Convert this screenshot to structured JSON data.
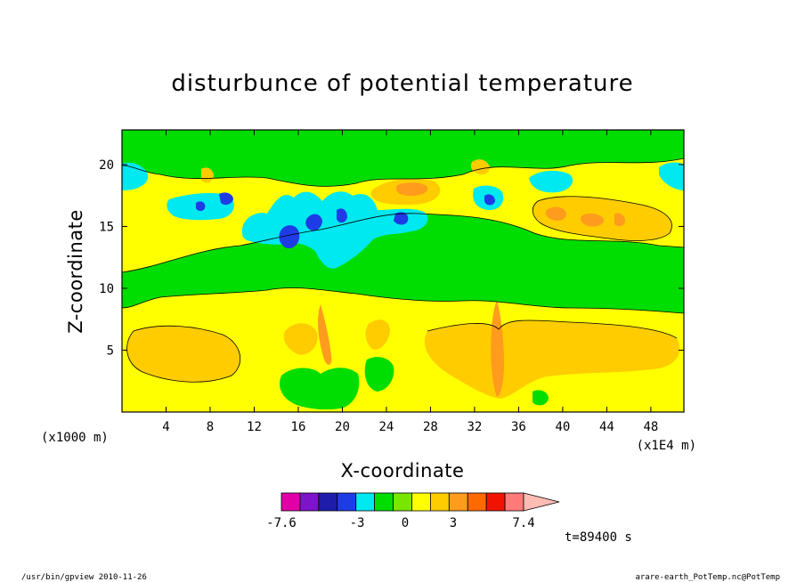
{
  "chart_data": {
    "type": "heatmap",
    "title": "disturbunce of potential temperature",
    "xlabel": "X-coordinate",
    "ylabel": "Z-coordinate",
    "x_unit_label": "(x1E4 m)",
    "y_unit_label": "(x1000 m)",
    "xlim": [
      0,
      51
    ],
    "ylim": [
      0,
      22.8
    ],
    "x_ticks": [
      "4",
      "8",
      "12",
      "16",
      "20",
      "24",
      "28",
      "32",
      "36",
      "40",
      "44",
      "48"
    ],
    "x_tick_values": [
      4,
      8,
      12,
      16,
      20,
      24,
      28,
      32,
      36,
      40,
      44,
      48
    ],
    "y_ticks": [
      "5",
      "10",
      "15",
      "20"
    ],
    "y_tick_values": [
      5,
      10,
      15,
      20
    ],
    "colorbar": {
      "labels": [
        "-7.6",
        "-3",
        "0",
        "3",
        "7.4"
      ],
      "min": -7.6,
      "max": 7.4,
      "colors": [
        "#e100a8",
        "#7d14c8",
        "#1d1daa",
        "#1e3ce6",
        "#00e8f0",
        "#00dd00",
        "#78e600",
        "#ffff00",
        "#ffcc00",
        "#ff9c1e",
        "#ff6a00",
        "#f01400",
        "#ff7a78",
        "#ffbcb4"
      ]
    },
    "regions": [
      {
        "name": "lower-left warm",
        "value": 2,
        "color": "#ffcc00"
      },
      {
        "name": "lower-right warm",
        "value": 2,
        "color": "#ffcc00"
      },
      {
        "name": "mid green band",
        "value": 0,
        "color": "#00dd00"
      },
      {
        "name": "upper cool center",
        "value": -2,
        "color": "#00e8f0"
      },
      {
        "name": "upper-right warm",
        "value": 2.5,
        "color": "#ffcc00"
      }
    ],
    "grid": false,
    "legend": "bottom-center colorbar"
  },
  "annotation": "t=89400 s",
  "footer": {
    "left": "/usr/bin/gpview   2010-11-26",
    "right": "arare-earth_PotTemp.nc@PotTemp"
  },
  "colors": {
    "green": "#00dd00",
    "yellow": "#ffff00",
    "orange": "#ffcc00",
    "cyan": "#00e8f0"
  }
}
